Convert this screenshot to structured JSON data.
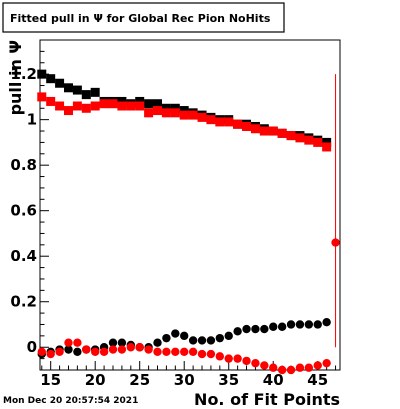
{
  "timestamp": "Mon Dec 20 20:57:54 2021",
  "chart_data": {
    "type": "scatter",
    "title": "Fitted pull in Ψ for Global Rec Pion NoHits",
    "xlabel": "No. of Fit Points",
    "ylabel": "pull in Ψ",
    "xlim": [
      13.8,
      47.5
    ],
    "ylim": [
      -0.1,
      1.35
    ],
    "x_ticks": [
      15,
      20,
      25,
      30,
      35,
      40,
      45
    ],
    "x_tick_labels": [
      "15",
      "20",
      "25",
      "30",
      "35",
      "40",
      "45"
    ],
    "y_ticks": [
      0,
      0.2,
      0.4,
      0.6,
      0.8,
      1,
      1.2
    ],
    "y_tick_labels": [
      "0",
      "0.2",
      "0.4",
      "0.6",
      "0.8",
      "1",
      "1.2"
    ],
    "grid": false,
    "legend": "none",
    "series": [
      {
        "color": "#000000",
        "marker": "square",
        "x": [
          14,
          15,
          16,
          17,
          18,
          19,
          20,
          21,
          22,
          23,
          24,
          25,
          26,
          27,
          28,
          29,
          30,
          31,
          32,
          33,
          34,
          35,
          36,
          37,
          38,
          39,
          40,
          41,
          42,
          43,
          44,
          45,
          46
        ],
        "values": [
          1.2,
          1.18,
          1.16,
          1.14,
          1.13,
          1.11,
          1.12,
          1.08,
          1.08,
          1.08,
          1.07,
          1.08,
          1.07,
          1.07,
          1.05,
          1.05,
          1.04,
          1.03,
          1.02,
          1.01,
          1.0,
          1.0,
          0.98,
          0.98,
          0.97,
          0.96,
          0.95,
          0.94,
          0.93,
          0.93,
          0.92,
          0.91,
          0.9
        ]
      },
      {
        "color": "#ff0000",
        "marker": "square",
        "x": [
          14,
          15,
          16,
          17,
          18,
          19,
          20,
          21,
          22,
          23,
          24,
          25,
          26,
          27,
          28,
          29,
          30,
          31,
          32,
          33,
          34,
          35,
          36,
          37,
          38,
          39,
          40,
          41,
          42,
          43,
          44,
          45,
          46
        ],
        "values": [
          1.1,
          1.08,
          1.06,
          1.04,
          1.06,
          1.05,
          1.06,
          1.07,
          1.07,
          1.06,
          1.06,
          1.06,
          1.03,
          1.04,
          1.03,
          1.03,
          1.02,
          1.02,
          1.01,
          1.0,
          0.99,
          0.99,
          0.98,
          0.97,
          0.96,
          0.95,
          0.95,
          0.94,
          0.93,
          0.92,
          0.91,
          0.9,
          0.88
        ]
      },
      {
        "color": "#ff0000",
        "marker": "circle",
        "x": [
          47
        ],
        "values": [
          0.46
        ],
        "y_error_upper": [
          1.2
        ],
        "y_error_lower": [
          0
        ]
      },
      {
        "color": "#000000",
        "marker": "circle",
        "x": [
          14,
          15,
          16,
          17,
          18,
          19,
          20,
          21,
          22,
          23,
          24,
          25,
          26,
          27,
          28,
          29,
          30,
          31,
          32,
          33,
          34,
          35,
          36,
          37,
          38,
          39,
          40,
          41,
          42,
          43,
          44,
          45,
          46
        ],
        "values": [
          -0.03,
          -0.02,
          -0.01,
          -0.01,
          -0.02,
          -0.01,
          -0.01,
          0.0,
          0.02,
          0.02,
          0.01,
          0.0,
          0.0,
          0.02,
          0.04,
          0.06,
          0.05,
          0.03,
          0.03,
          0.03,
          0.04,
          0.05,
          0.07,
          0.08,
          0.08,
          0.08,
          0.09,
          0.09,
          0.1,
          0.1,
          0.1,
          0.1,
          0.11
        ]
      },
      {
        "color": "#ff0000",
        "marker": "circle",
        "x": [
          14,
          15,
          16,
          17,
          18,
          19,
          20,
          21,
          22,
          23,
          24,
          25,
          26,
          27,
          28,
          29,
          30,
          31,
          32,
          33,
          34,
          35,
          36,
          37,
          38,
          39,
          40,
          41,
          42,
          43,
          44,
          45,
          46
        ],
        "values": [
          -0.02,
          -0.03,
          -0.02,
          0.02,
          0.02,
          -0.01,
          -0.02,
          -0.02,
          -0.01,
          -0.01,
          0.0,
          0.0,
          -0.01,
          -0.02,
          -0.02,
          -0.02,
          -0.02,
          -0.02,
          -0.03,
          -0.03,
          -0.04,
          -0.05,
          -0.05,
          -0.06,
          -0.07,
          -0.08,
          -0.09,
          -0.1,
          -0.1,
          -0.09,
          -0.09,
          -0.08,
          -0.07
        ]
      }
    ]
  }
}
